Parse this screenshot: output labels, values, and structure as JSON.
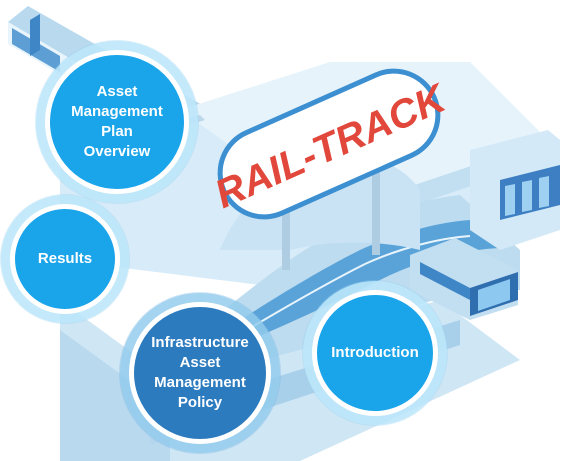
{
  "sign": {
    "text": "RAIL-TRACK"
  },
  "bubbles": {
    "plan_overview": {
      "label": [
        "Asset",
        "Management",
        "Plan",
        "Overview"
      ]
    },
    "results": {
      "label": "Results"
    },
    "policy": {
      "label": [
        "Infrastructure",
        "Asset",
        "Management",
        "Policy"
      ]
    },
    "introduction": {
      "label": "Introduction"
    }
  },
  "colors": {
    "bubble_light": "#1aa4ea",
    "bubble_dark": "#2d7bbf",
    "sign_text": "#e2473b",
    "sign_border": "#3c8fd0",
    "station": "#cfe6f5"
  }
}
